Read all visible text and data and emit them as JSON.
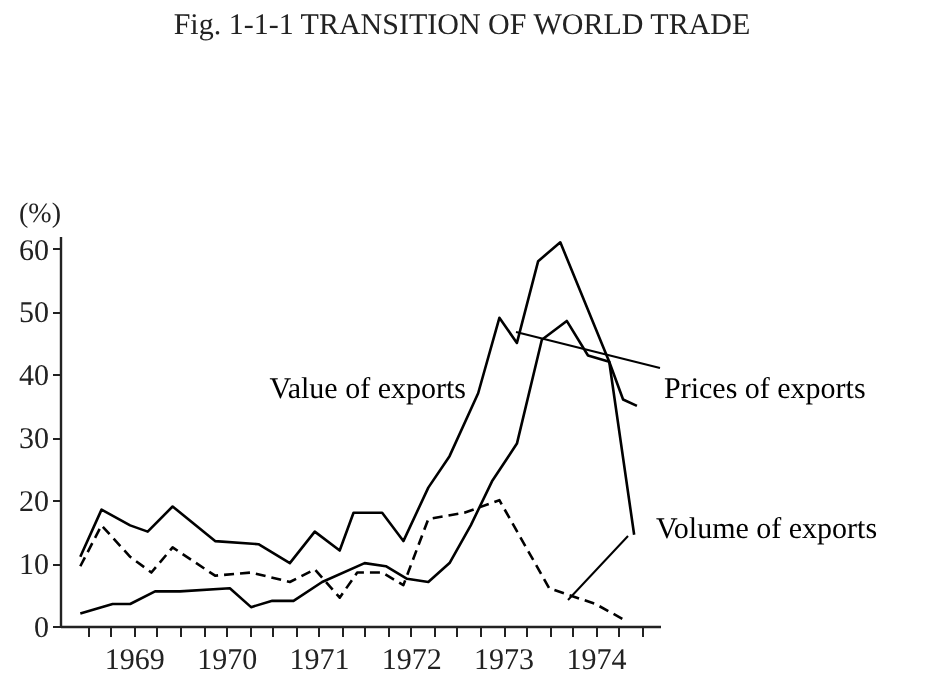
{
  "chart_data": {
    "type": "line",
    "title": "Fig. 1-1-1  TRANSITION OF WORLD TRADE",
    "ylabel": "(%)",
    "xlim": [
      1968.7,
      1975.2
    ],
    "ylim": [
      0,
      62
    ],
    "yticks": [
      0,
      10,
      20,
      30,
      40,
      50,
      60
    ],
    "xticks": [
      {
        "value": 1969.0,
        "label": null
      },
      {
        "value": 1969.25,
        "label": null
      },
      {
        "value": 1969.5,
        "label": "1969"
      },
      {
        "value": 1969.75,
        "label": null
      },
      {
        "value": 1970.0,
        "label": null
      },
      {
        "value": 1970.25,
        "label": null
      },
      {
        "value": 1970.5,
        "label": "1970"
      },
      {
        "value": 1970.75,
        "label": null
      },
      {
        "value": 1971.0,
        "label": null
      },
      {
        "value": 1971.25,
        "label": null
      },
      {
        "value": 1971.5,
        "label": "1971"
      },
      {
        "value": 1971.75,
        "label": null
      },
      {
        "value": 1972.0,
        "label": null
      },
      {
        "value": 1972.25,
        "label": null
      },
      {
        "value": 1972.5,
        "label": "1972"
      },
      {
        "value": 1972.75,
        "label": null
      },
      {
        "value": 1973.0,
        "label": null
      },
      {
        "value": 1973.25,
        "label": null
      },
      {
        "value": 1973.5,
        "label": "1973"
      },
      {
        "value": 1973.75,
        "label": null
      },
      {
        "value": 1974.0,
        "label": null
      },
      {
        "value": 1974.25,
        "label": null
      },
      {
        "value": 1974.5,
        "label": "1974"
      },
      {
        "value": 1974.75,
        "label": null
      },
      {
        "value": 1975.0,
        "label": null
      }
    ],
    "grid": false,
    "legend": false,
    "marker": "none",
    "series": [
      {
        "name": "Value of exports",
        "color": "#000000",
        "line_style": "solid",
        "x": [
          1968.92,
          1969.15,
          1969.46,
          1969.65,
          1969.92,
          1970.38,
          1970.85,
          1971.19,
          1971.46,
          1971.73,
          1971.88,
          1972.19,
          1972.42,
          1972.69,
          1972.92,
          1973.23,
          1973.46,
          1973.65,
          1973.88,
          1974.12,
          1974.65,
          1974.92
        ],
        "values": [
          11,
          18.5,
          16,
          15,
          19,
          13.5,
          13,
          10,
          15,
          12,
          18,
          18,
          13.5,
          22,
          27,
          37,
          49,
          45,
          58,
          61,
          42,
          14.5
        ]
      },
      {
        "name": "Prices of exports",
        "color": "#000000",
        "line_style": "solid",
        "x": [
          1968.92,
          1969.27,
          1969.46,
          1969.73,
          1970.0,
          1970.54,
          1970.77,
          1971.0,
          1971.23,
          1971.54,
          1972.0,
          1972.23,
          1972.46,
          1972.69,
          1972.92,
          1973.15,
          1973.38,
          1973.65,
          1973.92,
          1974.19,
          1974.42,
          1974.65,
          1974.8,
          1974.95
        ],
        "values": [
          2,
          3.5,
          3.5,
          5.5,
          5.5,
          6,
          3,
          4,
          4,
          7,
          10,
          9.5,
          7.5,
          7,
          10,
          16,
          23,
          29,
          45.5,
          48.5,
          43,
          42,
          36,
          35
        ]
      },
      {
        "name": "Volume of exports",
        "color": "#000000",
        "line_style": "dashed",
        "x": [
          1968.92,
          1969.15,
          1969.46,
          1969.69,
          1969.92,
          1970.38,
          1970.77,
          1971.19,
          1971.46,
          1971.73,
          1971.92,
          1972.19,
          1972.42,
          1972.69,
          1973.08,
          1973.46,
          1974.0,
          1974.5,
          1974.81
        ],
        "values": [
          9.5,
          16,
          11,
          8.5,
          12.5,
          8,
          8.5,
          7,
          9,
          4.5,
          8.5,
          8.5,
          6.5,
          17,
          18,
          20,
          6,
          3.5,
          1
        ]
      }
    ]
  }
}
